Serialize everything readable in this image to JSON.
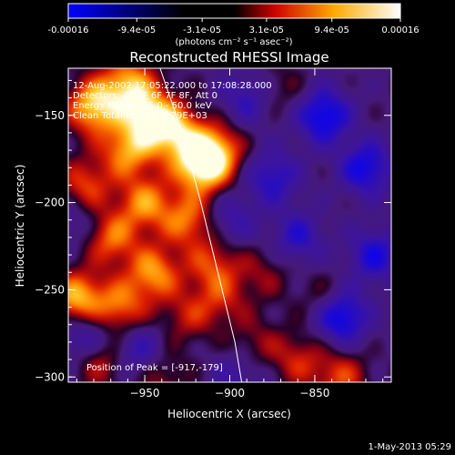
{
  "chart_data": {
    "type": "heatmap",
    "title": "Reconstructed RHESSI Image",
    "xlabel": "Heliocentric X (arcsec)",
    "ylabel": "Heliocentric Y (arcsec)",
    "x_ticks": [
      "-950",
      "-900",
      "-850"
    ],
    "y_ticks": [
      "-150",
      "-200",
      "-250",
      "-300"
    ],
    "xlim": [
      -995,
      -805
    ],
    "ylim": [
      -303,
      -123
    ],
    "colorbar": {
      "ticks": [
        "-0.00016",
        "-9.4e-05",
        "-3.1e-05",
        "3.1e-05",
        "9.4e-05",
        "0.00016"
      ],
      "tick_values": [
        -0.00016,
        -9.4e-05,
        -3.1e-05,
        3.1e-05,
        9.4e-05,
        0.00016
      ],
      "range": [
        -0.00016,
        0.00016
      ],
      "units_line": "(photons cm⁻² s⁻¹ asec⁻²)"
    },
    "annotations": [
      "12-Aug-2002 17:05:22.000 to 17:08:28.000",
      "Detectors: 4F 5F 6F 7F 8F, Att 0",
      "Energy Range: 25.0 - 50.0 keV",
      "Clean     Total counts: 4.79E+03"
    ],
    "peak_label": "Position of Peak = [-917,-179]",
    "peak": [
      -917,
      -179
    ],
    "sources": [
      {
        "x": -980,
        "y": -145,
        "amp": 1.0
      },
      {
        "x": -960,
        "y": -132,
        "amp": 0.85
      },
      {
        "x": -948,
        "y": -150,
        "amp": 0.95
      },
      {
        "x": -932,
        "y": -160,
        "amp": 0.9
      },
      {
        "x": -917,
        "y": -179,
        "amp": 1.1
      },
      {
        "x": -908,
        "y": -170,
        "amp": 0.75
      },
      {
        "x": -925,
        "y": -210,
        "amp": 0.7
      },
      {
        "x": -910,
        "y": -235,
        "amp": 0.55
      },
      {
        "x": -960,
        "y": -170,
        "amp": 0.8
      },
      {
        "x": -985,
        "y": -190,
        "amp": 0.6
      },
      {
        "x": -950,
        "y": -200,
        "amp": 0.75
      },
      {
        "x": -970,
        "y": -220,
        "amp": 0.7
      },
      {
        "x": -945,
        "y": -240,
        "amp": 0.8
      },
      {
        "x": -990,
        "y": -255,
        "amp": 0.95
      },
      {
        "x": -965,
        "y": -260,
        "amp": 0.7
      },
      {
        "x": -975,
        "y": -290,
        "amp": 0.5
      },
      {
        "x": -940,
        "y": -300,
        "amp": 0.35
      },
      {
        "x": -925,
        "y": -265,
        "amp": 0.4
      },
      {
        "x": -905,
        "y": -255,
        "amp": 0.4
      },
      {
        "x": -880,
        "y": -240,
        "amp": 0.3
      },
      {
        "x": -870,
        "y": -135,
        "amp": 0.25
      },
      {
        "x": -845,
        "y": -255,
        "amp": 0.3
      },
      {
        "x": -860,
        "y": -290,
        "amp": 0.45
      },
      {
        "x": -835,
        "y": -300,
        "amp": 0.55
      },
      {
        "x": -885,
        "y": -280,
        "amp": 0.3
      },
      {
        "x": -845,
        "y": -150,
        "amp": -0.8
      },
      {
        "x": -820,
        "y": -180,
        "amp": -0.7
      },
      {
        "x": -835,
        "y": -265,
        "amp": -0.85
      },
      {
        "x": -875,
        "y": -185,
        "amp": -0.55
      },
      {
        "x": -860,
        "y": -220,
        "amp": -0.5
      },
      {
        "x": -815,
        "y": -230,
        "amp": -0.6
      },
      {
        "x": -890,
        "y": -140,
        "amp": -0.45
      },
      {
        "x": -900,
        "y": -210,
        "amp": -0.4
      },
      {
        "x": -895,
        "y": -300,
        "amp": -0.35
      },
      {
        "x": -985,
        "y": -275,
        "amp": -0.55
      },
      {
        "x": -955,
        "y": -285,
        "amp": -0.5
      },
      {
        "x": -990,
        "y": -210,
        "amp": -0.3
      }
    ],
    "limb_arc": [
      [
        -941,
        -123
      ],
      [
        -928,
        -160
      ],
      [
        -917,
        -200
      ],
      [
        -907,
        -240
      ],
      [
        -897,
        -280
      ],
      [
        -893,
        -303
      ]
    ]
  },
  "footer": {
    "timestamp": "1-May-2013 05:29"
  }
}
